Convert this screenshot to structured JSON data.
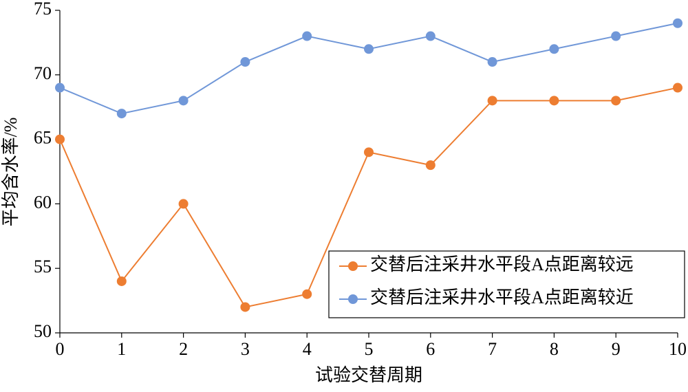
{
  "chart_data": {
    "type": "line",
    "x_label": "试验交替周期",
    "y_label": "平均含水率/%",
    "x": [
      0,
      1,
      2,
      3,
      4,
      5,
      6,
      7,
      8,
      9,
      10
    ],
    "series": [
      {
        "name": "交替后注采井水平段A点距离较远",
        "color": "#ed7d31",
        "values": [
          65,
          54,
          60,
          52,
          53,
          64,
          63,
          68,
          68,
          68,
          69
        ]
      },
      {
        "name": "交替后注采井水平段A点距离较近",
        "color": "#7097d8",
        "values": [
          69,
          67,
          68,
          71,
          73,
          72,
          73,
          71,
          72,
          73,
          74
        ]
      }
    ],
    "xlim": [
      0,
      10
    ],
    "xticks": [
      0,
      1,
      2,
      3,
      4,
      5,
      6,
      7,
      8,
      9,
      10
    ],
    "ylim": [
      50,
      75
    ],
    "yticks": [
      50,
      55,
      60,
      65,
      70,
      75
    ],
    "grid": false,
    "legend": "lower right"
  }
}
